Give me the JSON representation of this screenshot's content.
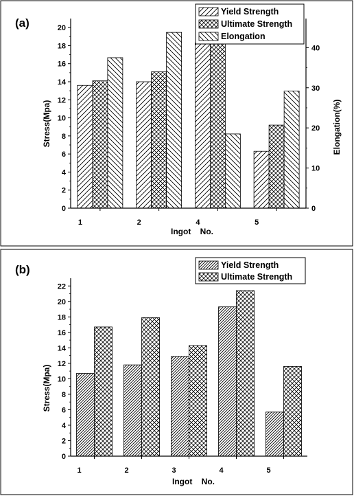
{
  "chart_data": [
    {
      "panel_label": "(a)",
      "type": "bar",
      "categories": [
        "1",
        "2",
        "4",
        "5"
      ],
      "xlabel": "Ingot    No.",
      "ylabel": "Stress(Mpa)",
      "ylabel_right": "Elongation(%)",
      "ylim": [
        0,
        21
      ],
      "ylim_right": [
        0,
        47.25
      ],
      "yticks": [
        0,
        2,
        4,
        6,
        8,
        10,
        12,
        14,
        16,
        18,
        20
      ],
      "yticks_right": [
        0,
        10,
        20,
        30,
        40
      ],
      "legend_position": "top-right",
      "series": [
        {
          "name": "Yield Strength",
          "axis": "left",
          "pattern": "hatch-fwd",
          "values": [
            13.6,
            14.0,
            18.3,
            6.3
          ]
        },
        {
          "name": "Ultimate Strength",
          "axis": "left",
          "pattern": "crosshatch",
          "values": [
            14.1,
            15.1,
            19.4,
            9.2
          ]
        },
        {
          "name": "Elongation",
          "axis": "right",
          "pattern": "hatch-back",
          "values": [
            37.5,
            43.8,
            18.5,
            29.2
          ]
        }
      ]
    },
    {
      "panel_label": "(b)",
      "type": "bar",
      "categories": [
        "1",
        "2",
        "3",
        "4",
        "5"
      ],
      "xlabel": "Ingot    No.",
      "ylabel": "Stress(Mpa)",
      "ylim": [
        0,
        23
      ],
      "yticks": [
        0,
        2,
        4,
        6,
        8,
        10,
        12,
        14,
        16,
        18,
        20,
        22
      ],
      "legend_position": "top-right",
      "series": [
        {
          "name": "Yield Strength",
          "pattern": "hatch-dense",
          "values": [
            10.7,
            11.8,
            12.9,
            19.3,
            5.7
          ]
        },
        {
          "name": "Ultimate Strength",
          "pattern": "crosshatch",
          "values": [
            16.7,
            17.9,
            14.3,
            21.4,
            11.6
          ]
        }
      ]
    }
  ]
}
